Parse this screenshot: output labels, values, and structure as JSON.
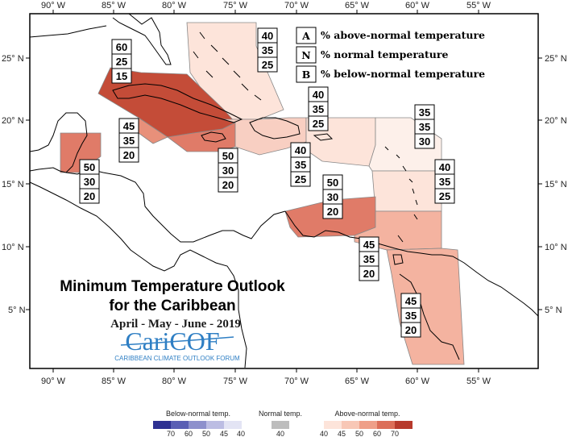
{
  "title_line1": "Minimum Temperature Outlook",
  "title_line2": "for the Caribbean",
  "period": "April - May - June - 2019",
  "logo": {
    "part1": "Cari",
    "part2": "COF",
    "subtitle": "CARIBBEAN CLIMATE OUTLOOK FORUM"
  },
  "axes": {
    "lon_labels": [
      "90° W",
      "85° W",
      "80° W",
      "75° W",
      "70° W",
      "65° W",
      "60° W",
      "55° W"
    ],
    "lat_labels": [
      "25° N",
      "20° N",
      "15° N",
      "10° N",
      "5° N"
    ]
  },
  "legend": {
    "items": [
      {
        "key": "A",
        "text": "% above-normal temperature"
      },
      {
        "key": "N",
        "text": "% normal temperature"
      },
      {
        "key": "B",
        "text": "% below-normal temperature"
      }
    ]
  },
  "zones": [
    {
      "id": "bahamas",
      "values": [
        "40",
        "35",
        "25"
      ],
      "fill_color": "#fde4da"
    },
    {
      "id": "cuba",
      "values": [
        "60",
        "25",
        "15"
      ],
      "fill_color": "#c44c38"
    },
    {
      "id": "cayman-jamaica",
      "values": [
        "45",
        "35",
        "20"
      ],
      "fill_color": "#e8907a"
    },
    {
      "id": "belize",
      "values": [
        "50",
        "30",
        "20"
      ],
      "fill_color": "#e07b68"
    },
    {
      "id": "jamaica-south",
      "values": [
        "50",
        "30",
        "20"
      ],
      "fill_color": "#e07b68"
    },
    {
      "id": "hispaniola",
      "values": [
        "40",
        "35",
        "25"
      ],
      "fill_color": "#f8cfc2"
    },
    {
      "id": "puerto-rico-east",
      "values": [
        "40",
        "35",
        "25"
      ],
      "fill_color": "#fde4da"
    },
    {
      "id": "leeward",
      "values": [
        "35",
        "35",
        "30"
      ],
      "fill_color": "#fdf0ea"
    },
    {
      "id": "windward",
      "values": [
        "40",
        "35",
        "25"
      ],
      "fill_color": "#fde4da"
    },
    {
      "id": "abc-islands",
      "values": [
        "50",
        "30",
        "20"
      ],
      "fill_color": "#e07b68"
    },
    {
      "id": "trinidad",
      "values": [
        "45",
        "35",
        "20"
      ],
      "fill_color": "#f4b3a0"
    },
    {
      "id": "guianas",
      "values": [
        "45",
        "35",
        "20"
      ],
      "fill_color": "#f4b3a0"
    }
  ],
  "colorbars": [
    {
      "title": "Below-normal temp.",
      "labels": [
        "70",
        "60",
        "50",
        "45",
        "40"
      ],
      "colors": [
        "#2e3192",
        "#5a5fb4",
        "#8d90cc",
        "#bcbde3",
        "#e3e4f4"
      ]
    },
    {
      "title": "Normal temp.",
      "labels": [
        "40"
      ],
      "colors": [
        "#bdbdbd"
      ]
    },
    {
      "title": "Above-normal temp.",
      "labels": [
        "40",
        "45",
        "50",
        "60",
        "70"
      ],
      "colors": [
        "#fde4da",
        "#f8c7b6",
        "#ef9f88",
        "#dc6e58",
        "#b73a2c"
      ]
    }
  ]
}
